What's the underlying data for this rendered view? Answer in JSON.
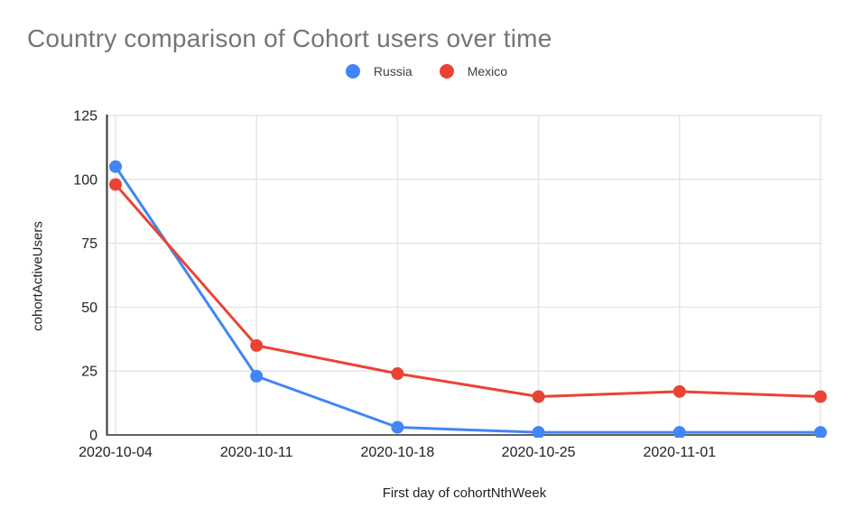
{
  "chart_data": {
    "type": "line",
    "title": "Country comparison of Cohort users over time",
    "xlabel": "First day of cohortNthWeek",
    "ylabel": "cohortActiveUsers",
    "categories": [
      "2020-10-04",
      "2020-10-11",
      "2020-10-18",
      "2020-10-25",
      "2020-11-01",
      ""
    ],
    "series": [
      {
        "name": "Russia",
        "color": "#4285F4",
        "values": [
          105,
          23,
          3,
          1,
          1,
          1
        ]
      },
      {
        "name": "Mexico",
        "color": "#EA4335",
        "values": [
          98,
          35,
          24,
          15,
          17,
          15
        ]
      }
    ],
    "ylim": [
      0,
      125
    ],
    "y_ticks": [
      0,
      25,
      50,
      75,
      100,
      125
    ],
    "grid": true,
    "legend_position": "top-center",
    "point_radius": 7,
    "line_width": 3,
    "colors": {
      "title_text": "#757575",
      "axis_text": "#202124",
      "legend_text": "#3c4043",
      "grid_line": "#e6e6e6",
      "left_axis_line": "#333333",
      "bottom_axis_line": "#616161"
    }
  }
}
